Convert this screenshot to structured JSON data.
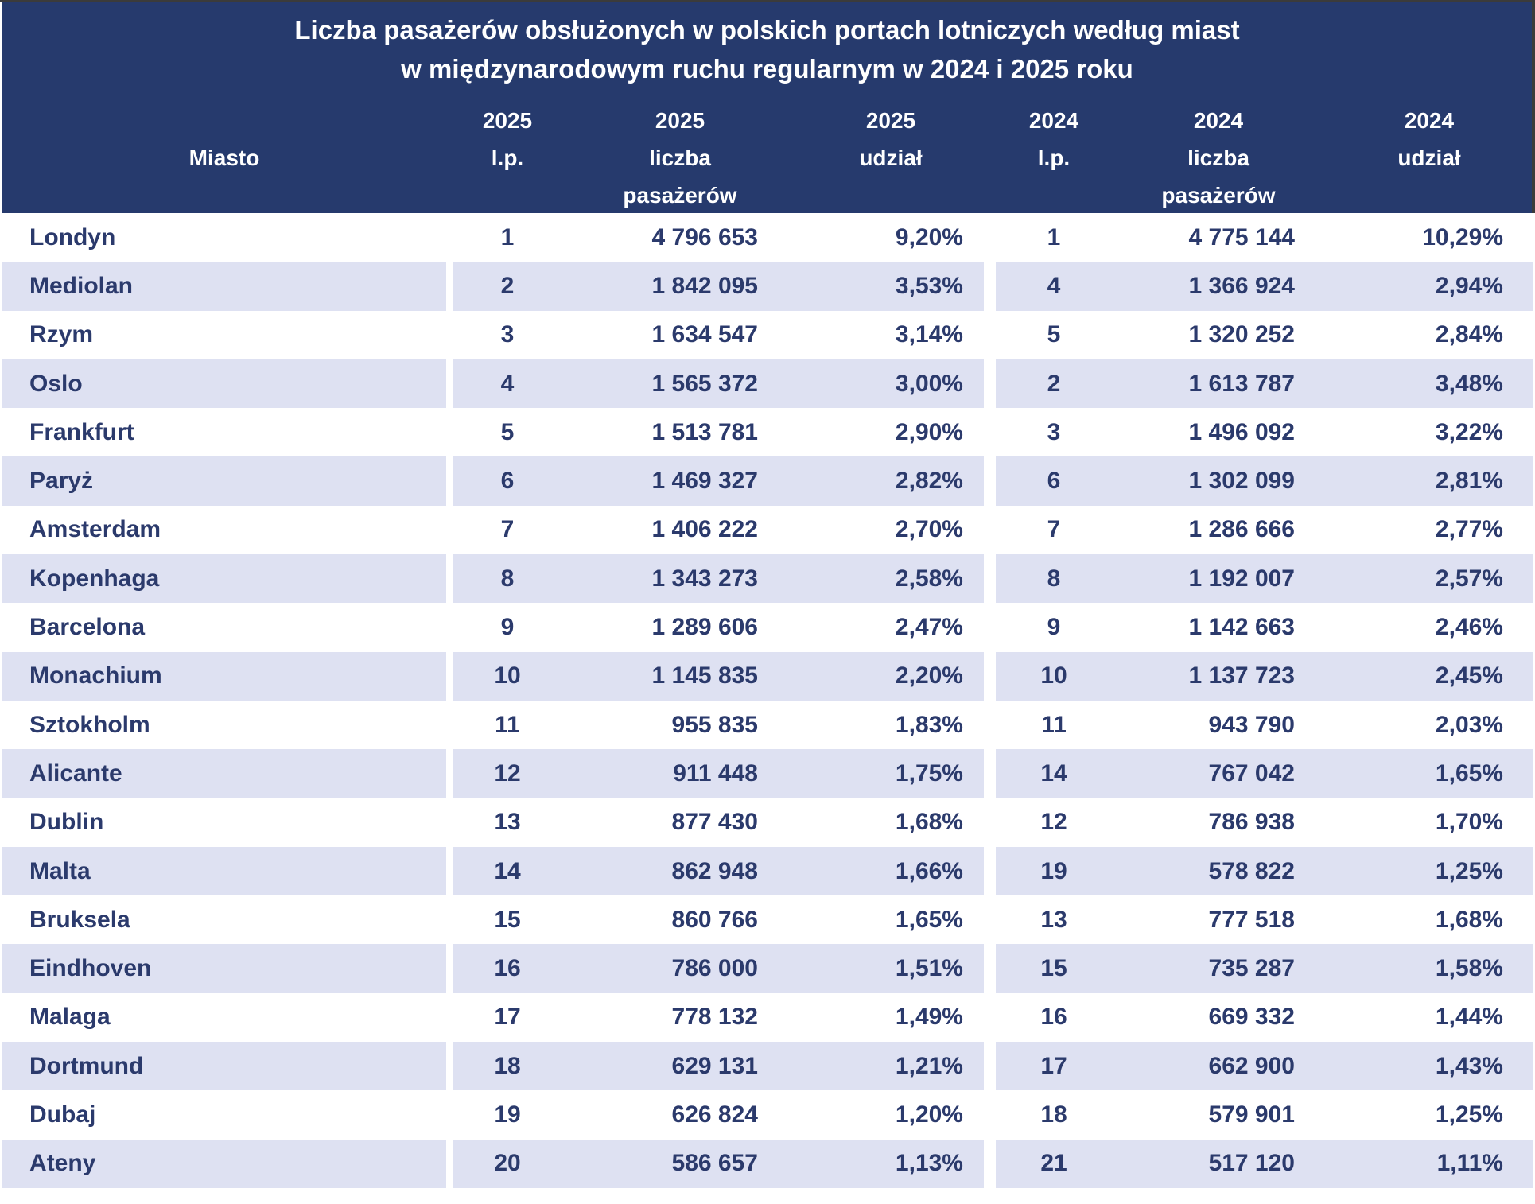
{
  "title": {
    "line1": "Liczba pasażerów obsłużonych w polskich portach lotniczych według miast",
    "line2": "w międzynarodowym ruchu regularnym w 2024 i 2025 roku"
  },
  "table": {
    "header": {
      "city": "Miasto",
      "year_2025": "2025",
      "year_2024": "2024",
      "rank": "l.p.",
      "passengers_line1": "liczba",
      "passengers_line2": "pasażerów",
      "share": "udział"
    }
  },
  "colors": {
    "header_bg": "#263a6d",
    "stripe": "#dee1f2",
    "text": "#2b3a6c",
    "title_text": "#ffffff",
    "frame": "#3b3b3b"
  },
  "chart_data": {
    "type": "table",
    "title": "Liczba pasażerów obsłużonych w polskich portach lotniczych według miast w międzynarodowym ruchu regularnym w 2024 i 2025 roku",
    "columns": [
      "Miasto",
      "2025 l.p.",
      "2025 liczba pasażerów",
      "2025 udział",
      "2024 l.p.",
      "2024 liczba pasażerów",
      "2024 udział"
    ],
    "rows": [
      [
        "Londyn",
        "1",
        "4 796 653",
        "9,20%",
        "1",
        "4 775 144",
        "10,29%"
      ],
      [
        "Mediolan",
        "2",
        "1 842 095",
        "3,53%",
        "4",
        "1 366 924",
        "2,94%"
      ],
      [
        "Rzym",
        "3",
        "1 634 547",
        "3,14%",
        "5",
        "1 320 252",
        "2,84%"
      ],
      [
        "Oslo",
        "4",
        "1 565 372",
        "3,00%",
        "2",
        "1 613 787",
        "3,48%"
      ],
      [
        "Frankfurt",
        "5",
        "1 513 781",
        "2,90%",
        "3",
        "1 496 092",
        "3,22%"
      ],
      [
        "Paryż",
        "6",
        "1 469 327",
        "2,82%",
        "6",
        "1 302 099",
        "2,81%"
      ],
      [
        "Amsterdam",
        "7",
        "1 406 222",
        "2,70%",
        "7",
        "1 286 666",
        "2,77%"
      ],
      [
        "Kopenhaga",
        "8",
        "1 343 273",
        "2,58%",
        "8",
        "1 192 007",
        "2,57%"
      ],
      [
        "Barcelona",
        "9",
        "1 289 606",
        "2,47%",
        "9",
        "1 142 663",
        "2,46%"
      ],
      [
        "Monachium",
        "10",
        "1 145 835",
        "2,20%",
        "10",
        "1 137 723",
        "2,45%"
      ],
      [
        "Sztokholm",
        "11",
        "955 835",
        "1,83%",
        "11",
        "943 790",
        "2,03%"
      ],
      [
        "Alicante",
        "12",
        "911 448",
        "1,75%",
        "14",
        "767 042",
        "1,65%"
      ],
      [
        "Dublin",
        "13",
        "877 430",
        "1,68%",
        "12",
        "786 938",
        "1,70%"
      ],
      [
        "Malta",
        "14",
        "862 948",
        "1,66%",
        "19",
        "578 822",
        "1,25%"
      ],
      [
        "Bruksela",
        "15",
        "860 766",
        "1,65%",
        "13",
        "777 518",
        "1,68%"
      ],
      [
        "Eindhoven",
        "16",
        "786 000",
        "1,51%",
        "15",
        "735 287",
        "1,58%"
      ],
      [
        "Malaga",
        "17",
        "778 132",
        "1,49%",
        "16",
        "669 332",
        "1,44%"
      ],
      [
        "Dortmund",
        "18",
        "629 131",
        "1,21%",
        "17",
        "662 900",
        "1,43%"
      ],
      [
        "Dubaj",
        "19",
        "626 824",
        "1,20%",
        "18",
        "579 901",
        "1,25%"
      ],
      [
        "Ateny",
        "20",
        "586 657",
        "1,13%",
        "21",
        "517 120",
        "1,11%"
      ]
    ]
  }
}
